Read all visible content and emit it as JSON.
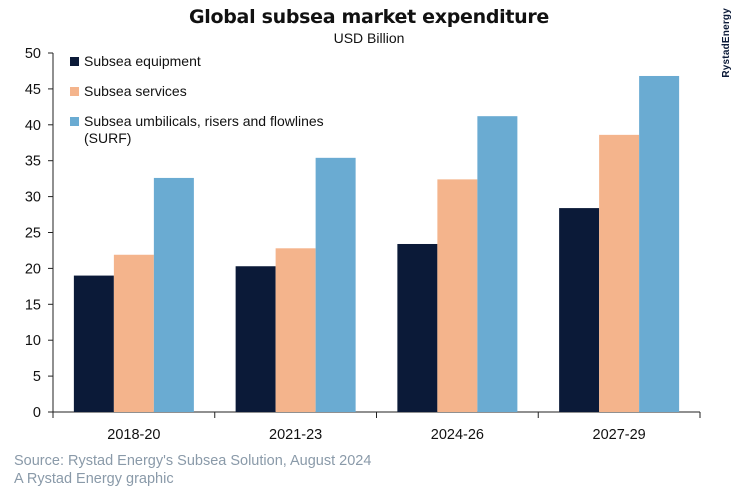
{
  "chart_data": {
    "type": "bar",
    "title": "Global subsea market expenditure",
    "subtitle": "USD Billion",
    "categories": [
      "2018-20",
      "2021-23",
      "2024-26",
      "2027-29"
    ],
    "series": [
      {
        "name": "Subsea equipment",
        "color": "#0b1a38",
        "values": [
          19.0,
          20.3,
          23.4,
          28.4
        ]
      },
      {
        "name": "Subsea services",
        "color": "#f4b48c",
        "values": [
          21.9,
          22.8,
          32.4,
          38.6
        ]
      },
      {
        "name": "Subsea umbilicals, risers and flowlines (SURF)",
        "color": "#6aabd2",
        "values": [
          32.6,
          35.4,
          41.2,
          46.8
        ]
      }
    ],
    "ylim": [
      0,
      50
    ],
    "yticks": [
      0,
      5,
      10,
      15,
      20,
      25,
      30,
      35,
      40,
      45,
      50
    ],
    "grid": false,
    "legend_position": "top-left"
  },
  "brand": "RystadEnergy",
  "source_line1": "Source: Rystad Energy's Subsea Solution, August 2024",
  "source_line2": "A Rystad Energy graphic"
}
